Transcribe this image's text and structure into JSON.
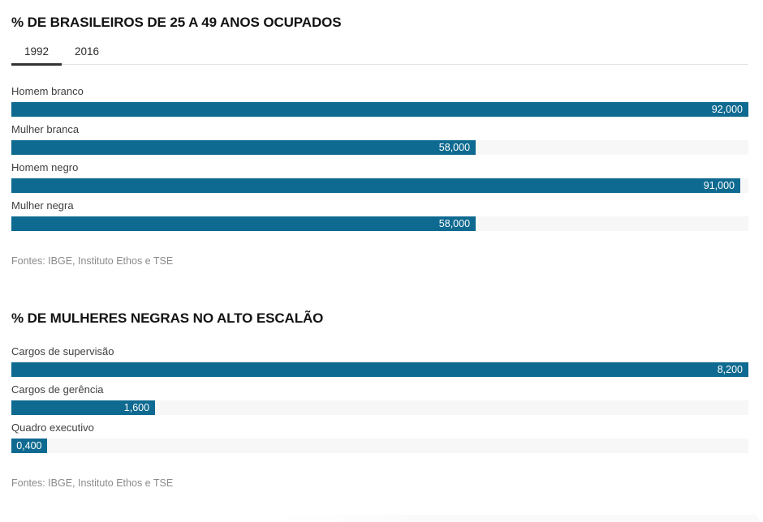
{
  "colors": {
    "bar": "#0e6a90",
    "track": "#f7f7f7",
    "active_tab_underline": "#333333",
    "tab_rule": "#e4e4e4",
    "title_text": "#131313",
    "label_text": "#404040",
    "value_text": "#ffffff",
    "source_text": "#8b8b8b"
  },
  "chart_data": [
    {
      "type": "bar",
      "orientation": "horizontal",
      "title": "% DE BRASILEIROS DE 25 A 49 ANOS OCUPADOS",
      "tabs": [
        "1992",
        "2016"
      ],
      "tab_selected": "1992",
      "categories": [
        "Homem branco",
        "Mulher branca",
        "Homem negro",
        "Mulher negra"
      ],
      "values": [
        92.0,
        58.0,
        91.0,
        58.0
      ],
      "value_labels": [
        "92,000",
        "58,000",
        "91,000",
        "58,000"
      ],
      "bar_pcts": [
        100,
        63.0,
        98.9,
        63.0
      ],
      "xlim": [
        0,
        92
      ],
      "grid": false,
      "legend": false,
      "source": "Fontes: IBGE, Instituto Ethos e TSE"
    },
    {
      "type": "bar",
      "orientation": "horizontal",
      "title": "% DE MULHERES NEGRAS NO ALTO ESCALÃO",
      "categories": [
        "Cargos de supervisão",
        "Cargos de gerência",
        "Quadro executivo"
      ],
      "values": [
        8.2,
        1.6,
        0.4
      ],
      "value_labels": [
        "8,200",
        "1,600",
        "0,400"
      ],
      "bar_pcts": [
        100,
        19.5,
        4.9
      ],
      "xlim": [
        0,
        8.2
      ],
      "grid": false,
      "legend": false,
      "source": "Fontes: IBGE, Instituto Ethos e TSE"
    }
  ]
}
